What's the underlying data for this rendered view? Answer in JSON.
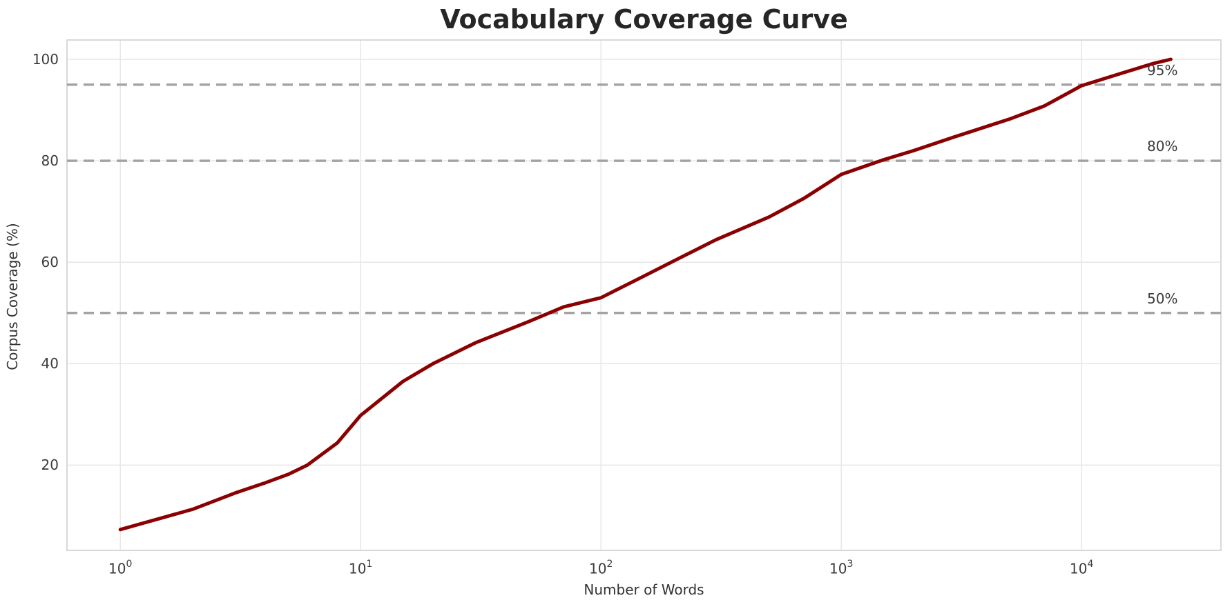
{
  "chart_data": {
    "type": "line",
    "title": "Vocabulary Coverage Curve",
    "xlabel": "Number of Words",
    "ylabel": "Corpus Coverage (%)",
    "x_scale": "log",
    "xlim": [
      0.6,
      38000
    ],
    "ylim": [
      3.2,
      103.8
    ],
    "grid": true,
    "legend": "none",
    "series": [
      {
        "name": "vocabulary-coverage",
        "color": "#8b0000",
        "points": [
          [
            1,
            7.3
          ],
          [
            2,
            11.3
          ],
          [
            3,
            14.5
          ],
          [
            4,
            16.5
          ],
          [
            5,
            18.2
          ],
          [
            6,
            20.0
          ],
          [
            8,
            24.4
          ],
          [
            10,
            29.8
          ],
          [
            15,
            36.5
          ],
          [
            20,
            40.0
          ],
          [
            30,
            44.1
          ],
          [
            50,
            48.3
          ],
          [
            70,
            51.2
          ],
          [
            100,
            53.0
          ],
          [
            150,
            57.2
          ],
          [
            200,
            60.2
          ],
          [
            300,
            64.4
          ],
          [
            500,
            68.9
          ],
          [
            700,
            72.6
          ],
          [
            1000,
            77.3
          ],
          [
            1500,
            80.2
          ],
          [
            2000,
            82.0
          ],
          [
            3000,
            84.8
          ],
          [
            5000,
            88.2
          ],
          [
            7000,
            90.8
          ],
          [
            10000,
            94.8
          ],
          [
            15000,
            97.4
          ],
          [
            20000,
            99.2
          ],
          [
            23500,
            100.0
          ]
        ]
      }
    ],
    "thresholds": [
      {
        "value": 50,
        "label": "50%"
      },
      {
        "value": 80,
        "label": "80%"
      },
      {
        "value": 95,
        "label": "95%"
      }
    ],
    "x_ticks": [
      {
        "base": "10",
        "exp": "0",
        "value": 1
      },
      {
        "base": "10",
        "exp": "1",
        "value": 10
      },
      {
        "base": "10",
        "exp": "2",
        "value": 100
      },
      {
        "base": "10",
        "exp": "3",
        "value": 1000
      },
      {
        "base": "10",
        "exp": "4",
        "value": 10000
      }
    ],
    "y_ticks": [
      {
        "label": "20",
        "value": 20
      },
      {
        "label": "40",
        "value": 40
      },
      {
        "label": "60",
        "value": 60
      },
      {
        "label": "80",
        "value": 80
      },
      {
        "label": "100",
        "value": 100
      }
    ]
  },
  "colors": {
    "curve": "#8b0000",
    "grid": "#e8e8e8",
    "spine": "#d4d4d4",
    "threshold": "#a3a3a3",
    "title_text": "#262626",
    "tick_text": "#3a3a3a",
    "background": "#ffffff"
  }
}
